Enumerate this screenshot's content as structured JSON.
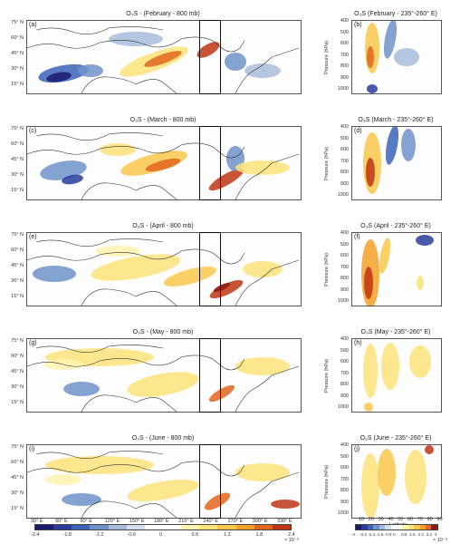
{
  "rows": [
    {
      "map_title": "O₃S - (February - 800 mb)",
      "map_letter": "(a)",
      "prof_title": "O₃S (February - 235°-260° E)",
      "prof_letter": "(b)"
    },
    {
      "map_title": "O₃S - (March - 800 mb)",
      "map_letter": "(c)",
      "prof_title": "O₃S (March - 235°-260° E)",
      "prof_letter": "(d)"
    },
    {
      "map_title": "O₃S - (April - 800 mb)",
      "map_letter": "(e)",
      "prof_title": "O₃S (April - 235°-260° E)",
      "prof_letter": "(f)"
    },
    {
      "map_title": "O₃S - (May - 800 mb)",
      "map_letter": "(g)",
      "prof_title": "O₃S (May - 235°-260° E)",
      "prof_letter": "(h)"
    },
    {
      "map_title": "O₃S - (June - 800 mb)",
      "map_letter": "(i)",
      "prof_title": "O₃S (June - 235°-260° E)",
      "prof_letter": "(j)"
    }
  ],
  "lat_labels": [
    "75° N",
    "60° N",
    "45° N",
    "30° N",
    "15° N"
  ],
  "pressure_labels": [
    "400",
    "500",
    "600",
    "700",
    "800",
    "900",
    "1000"
  ],
  "pressure_title": "Pressure (hPa)",
  "lon_labels": [
    "30° E",
    "60° E",
    "90° E",
    "120° E",
    "150° E",
    "180° E",
    "210° E",
    "240° E",
    "270° E",
    "300° E",
    "330° E"
  ],
  "prof_x_labels": [
    "10",
    "20",
    "30",
    "40",
    "50",
    "60",
    "70",
    "80",
    "90"
  ],
  "prof_x_title": "Latitude",
  "map_colorbar": {
    "ticks": [
      "-2.4",
      "-1.8",
      "-1.2",
      "-0.6",
      "0",
      "0.6",
      "1.2",
      "1.8",
      "2.4"
    ],
    "exponent": "× 10⁻⁹"
  },
  "prof_colorbar": {
    "ticks": [
      "-4",
      "-3.2",
      "-2.4",
      "-1.6",
      "-0.8",
      "0",
      "0.8",
      "1.6",
      "2.4",
      "3.2",
      "4"
    ],
    "exponent": "× 10⁻⁹"
  },
  "palette": [
    "#1a1a6e",
    "#2c3c9c",
    "#3b63b8",
    "#6f93c9",
    "#a7bcdb",
    "#d5deec",
    "#ffffff",
    "#fff3b0",
    "#fde37a",
    "#f9c74a",
    "#f4a026",
    "#e2661c",
    "#c03513",
    "#8c1b10"
  ]
}
